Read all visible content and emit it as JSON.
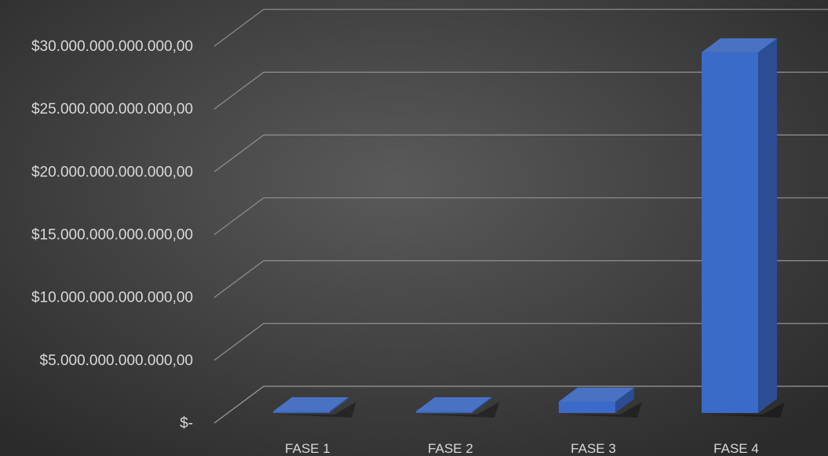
{
  "chart_data": {
    "type": "bar",
    "style": "3d-column",
    "categories": [
      "FASE 1",
      "FASE 2",
      "FASE 3",
      "FASE 4"
    ],
    "values": [
      0,
      50000000000,
      900000000000,
      28700000000000
    ],
    "ylim": [
      0,
      30000000000000
    ],
    "yticks": [
      0,
      5000000000000,
      10000000000000,
      15000000000000,
      20000000000000,
      25000000000000,
      30000000000000
    ],
    "ytick_labels": [
      "$-",
      "$5.000.000.000.000,00",
      "$10.000.000.000.000,00",
      "$15.000.000.000.000,00",
      "$20.000.000.000.000,00",
      "$25.000.000.000.000,00",
      "$30.000.000.000.000,00"
    ],
    "grid": true,
    "legend": "none",
    "colors": {
      "bar_front": "#3a6bc9",
      "bar_side": "#2a4d94",
      "bar_top": "#4a72c2",
      "grid": "#8a8a8a",
      "text": "#d9d9d9",
      "background": "#474747"
    }
  }
}
